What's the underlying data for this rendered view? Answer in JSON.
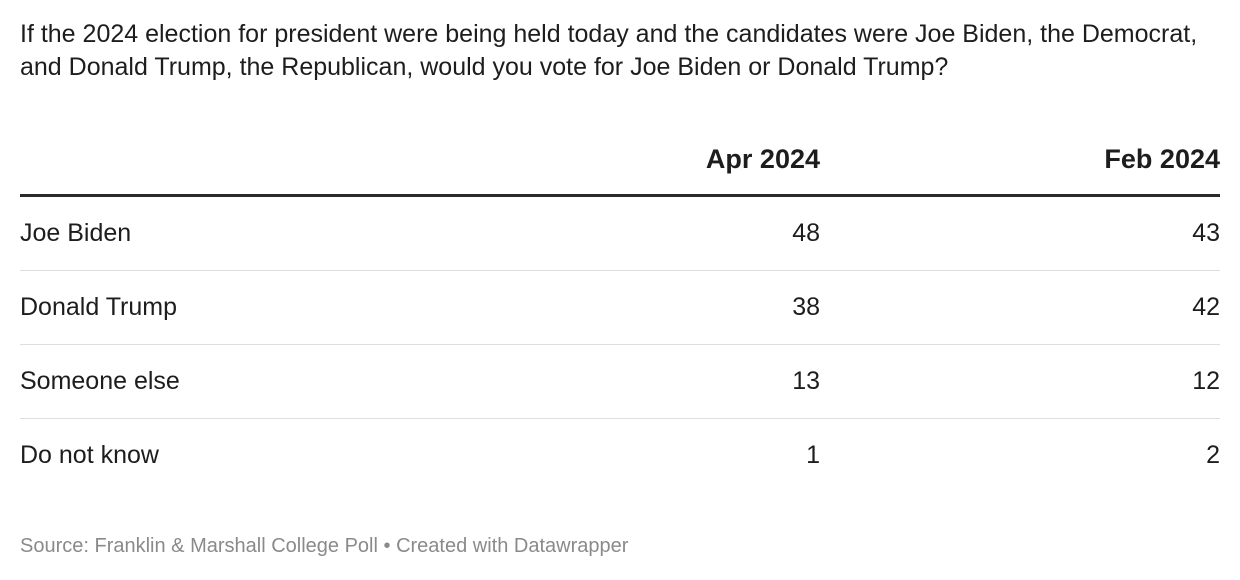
{
  "title": "If the 2024 election for president were being held today and the candidates were Joe Biden, the Democrat, and Donald Trump, the Republican, would you vote for Joe Biden or Donald Trump?",
  "footer": {
    "source": "Source: Franklin & Marshall College Poll",
    "separator": "•",
    "credit": "Created with Datawrapper"
  },
  "chart_data": {
    "type": "table",
    "title": "If the 2024 election for president were being held today and the candidates were Joe Biden, the Democrat, and Donald Trump, the Republican, would you vote for Joe Biden or Donald Trump?",
    "columns": [
      "",
      "Apr 2024",
      "Feb 2024"
    ],
    "rows": [
      {
        "label": "Joe Biden",
        "values": [
          "48",
          "43"
        ]
      },
      {
        "label": "Donald Trump",
        "values": [
          "38",
          "42"
        ]
      },
      {
        "label": "Someone else",
        "values": [
          "13",
          "12"
        ]
      },
      {
        "label": "Do not know",
        "values": [
          "1",
          "2"
        ]
      }
    ],
    "series": [
      {
        "name": "Apr 2024",
        "values": [
          48,
          38,
          13,
          1
        ]
      },
      {
        "name": "Feb 2024",
        "values": [
          43,
          42,
          12,
          2
        ]
      }
    ],
    "categories": [
      "Joe Biden",
      "Donald Trump",
      "Someone else",
      "Do not know"
    ]
  }
}
